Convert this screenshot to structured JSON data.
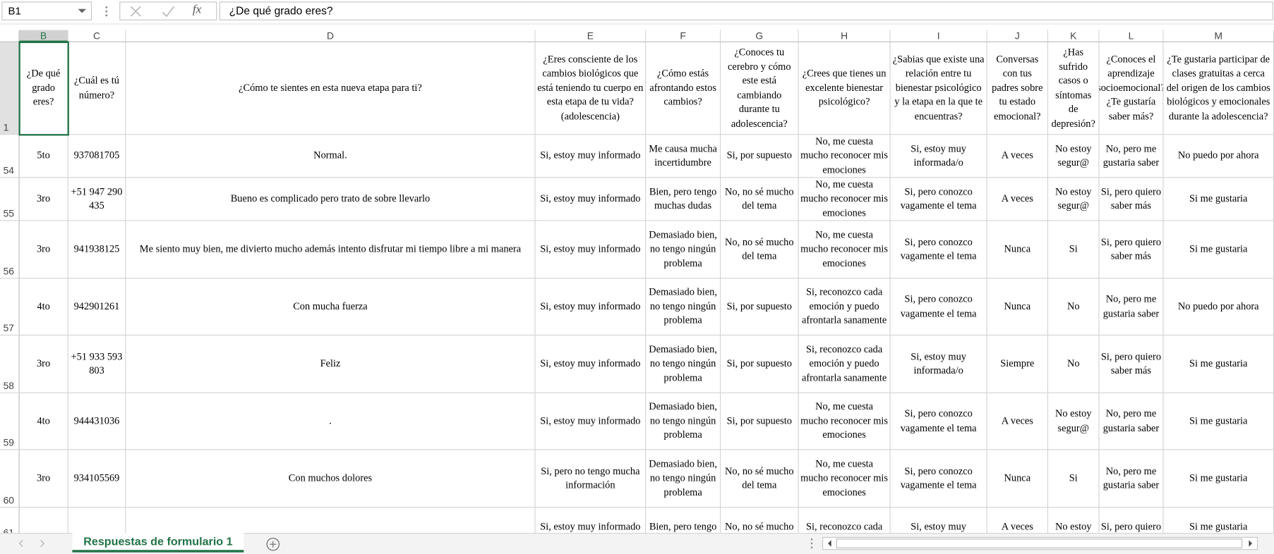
{
  "name_box": "B1",
  "formula_icon": "fx",
  "formula": "¿De qué grado eres?",
  "columns": [
    "B",
    "C",
    "D",
    "E",
    "F",
    "G",
    "H",
    "I",
    "J",
    "K",
    "L",
    "M"
  ],
  "rows": [
    {
      "number": 1,
      "cells": [
        "¿De qué grado eres?",
        "¿Cuál es tú número?",
        "¿Cómo te sientes en esta nueva etapa para ti?",
        "¿Eres consciente de los cambios biológicos que está teniendo tu cuerpo en esta etapa de tu vida?(adolescencia)",
        "¿Cómo estás afrontando estos cambios?",
        "¿Conoces tu cerebro y cómo este está cambiando durante tu adolescencia?",
        "¿Crees que tienes un excelente bienestar psicológico?",
        "¿Sabias que existe una relación entre tu bienestar psicológico y la etapa en la que te encuentras?",
        "Conversas con tus padres sobre tu estado emocional?",
        "¿Has sufrido casos o síntomas de depresión?",
        "¿Conoces  el aprendizaje socioemocional? ¿Te gustaría saber más?",
        "¿Te gustaria participar de clases gratuitas a cerca del origen de los cambios biológicos y emocionales durante la adolescencia?"
      ]
    },
    {
      "number": 54,
      "cells": [
        "5to",
        "937081705",
        "Normal.",
        "Si, estoy muy informado",
        "Me causa mucha incertidumbre",
        "Si, por supuesto",
        "No, me cuesta mucho reconocer mis emociones",
        "Si, estoy muy informada/o",
        "A veces",
        "No estoy segur@",
        "No, pero me gustaria saber",
        "No puedo por ahora"
      ]
    },
    {
      "number": 55,
      "cells": [
        "3ro",
        "+51 947 290 435",
        "Bueno es complicado pero trato de sobre llevarlo",
        "Si, estoy muy informado",
        "Bien, pero tengo muchas dudas",
        "No, no sé mucho del tema",
        "No, me cuesta mucho reconocer mis emociones",
        "Si, pero conozco vagamente el tema",
        "A veces",
        "No estoy segur@",
        "Si, pero quiero saber más",
        "Si me gustaria"
      ]
    },
    {
      "number": 56,
      "cells": [
        "3ro",
        "941938125",
        "Me siento muy bien, me divierto mucho además intento disfrutar mi tiempo libre a mi manera",
        "Si, estoy muy informado",
        "Demasiado bien, no tengo ningún problema",
        "No, no sé mucho del tema",
        "No, me cuesta mucho reconocer mis emociones",
        "Si, pero conozco vagamente el tema",
        "Nunca",
        "Si",
        "Si, pero quiero saber más",
        "Si me gustaria"
      ]
    },
    {
      "number": 57,
      "cells": [
        "4to",
        "942901261",
        "Con mucha fuerza",
        "Si, estoy muy informado",
        "Demasiado bien, no tengo ningún problema",
        "Si, por supuesto",
        "Si, reconozco cada emoción y puedo afrontarla sanamente",
        "Si, pero conozco vagamente el tema",
        "Nunca",
        "No",
        "No, pero me gustaria saber",
        "No puedo por ahora"
      ]
    },
    {
      "number": 58,
      "cells": [
        "3ro",
        "+51 933 593 803",
        "Feliz",
        "Si, estoy muy informado",
        "Demasiado bien, no tengo ningún problema",
        "Si, por supuesto",
        "Si, reconozco cada emoción y puedo afrontarla sanamente",
        "Si, estoy muy informada/o",
        "Siempre",
        "No",
        "Si, pero quiero saber más",
        "Si me gustaria"
      ]
    },
    {
      "number": 59,
      "cells": [
        "4to",
        "944431036",
        ".",
        "Si, estoy muy informado",
        "Demasiado bien, no tengo ningún problema",
        "Si, por supuesto",
        "No, me cuesta mucho reconocer mis emociones",
        "Si, pero conozco vagamente el tema",
        "A veces",
        "No estoy segur@",
        "No, pero me gustaria saber",
        "Si me gustaria"
      ]
    },
    {
      "number": 60,
      "cells": [
        "3ro",
        "934105569",
        "Con muchos dolores",
        "Si, pero no tengo mucha información",
        "Demasiado bien, no tengo ningún problema",
        "No, no sé mucho del tema",
        "No, me cuesta mucho reconocer mis emociones",
        "Si, pero conozco vagamente el tema",
        "Nunca",
        "Si",
        "No, pero me gustaria saber",
        "Si me gustaria"
      ]
    },
    {
      "number": 61,
      "cells": [
        null,
        null,
        null,
        "Si, estoy muy informado",
        "Bien, pero tengo muchas dudas",
        "No, no sé mucho del tema",
        "Si, reconozco cada emoción y puedo afrontarla sanamente",
        "Si, estoy muy informada/o",
        "A veces",
        "No estoy segur@",
        "Si, pero quiero saber más",
        "Si me gustaria"
      ]
    }
  ],
  "sheet_tab": "Respuestas de formulario 1"
}
